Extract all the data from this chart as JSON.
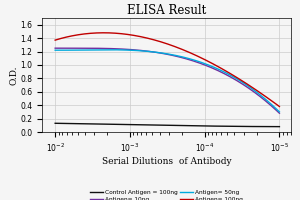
{
  "title": "ELISA Result",
  "ylabel": "O.D.",
  "xlabel": "Serial Dilutions  of Antibody",
  "ylim": [
    0,
    1.7
  ],
  "yticks": [
    0,
    0.2,
    0.4,
    0.6,
    0.8,
    1.0,
    1.2,
    1.4,
    1.6
  ],
  "xlim_left": 0.015,
  "xlim_right": 7e-06,
  "lines": [
    {
      "label": "Control Antigen = 100ng",
      "color": "#111111",
      "x": [
        0.01,
        0.001,
        0.0001,
        1e-05
      ],
      "y": [
        0.13,
        0.11,
        0.09,
        0.08
      ]
    },
    {
      "label": "Antigen= 10ng",
      "color": "#7030A0",
      "x": [
        0.01,
        0.001,
        0.0001,
        1e-05
      ],
      "y": [
        1.25,
        1.23,
        1.0,
        0.28
      ]
    },
    {
      "label": "Antigen= 50ng",
      "color": "#00AADD",
      "x": [
        0.01,
        0.001,
        0.0001,
        1e-05
      ],
      "y": [
        1.22,
        1.22,
        1.02,
        0.3
      ]
    },
    {
      "label": "Antigen= 100ng",
      "color": "#C00000",
      "x": [
        0.01,
        0.001,
        0.0001,
        1e-05
      ],
      "y": [
        1.37,
        1.45,
        1.08,
        0.38
      ]
    }
  ],
  "background_color": "#f5f5f5",
  "grid_color": "#cccccc",
  "legend_items": [
    {
      "label": "Control Antigen = 100ng",
      "color": "#111111"
    },
    {
      "label": "Antigen= 10ng",
      "color": "#7030A0"
    },
    {
      "label": "Antigen= 50ng",
      "color": "#00AADD"
    },
    {
      "label": "Antigen= 100ng",
      "color": "#C00000"
    }
  ]
}
